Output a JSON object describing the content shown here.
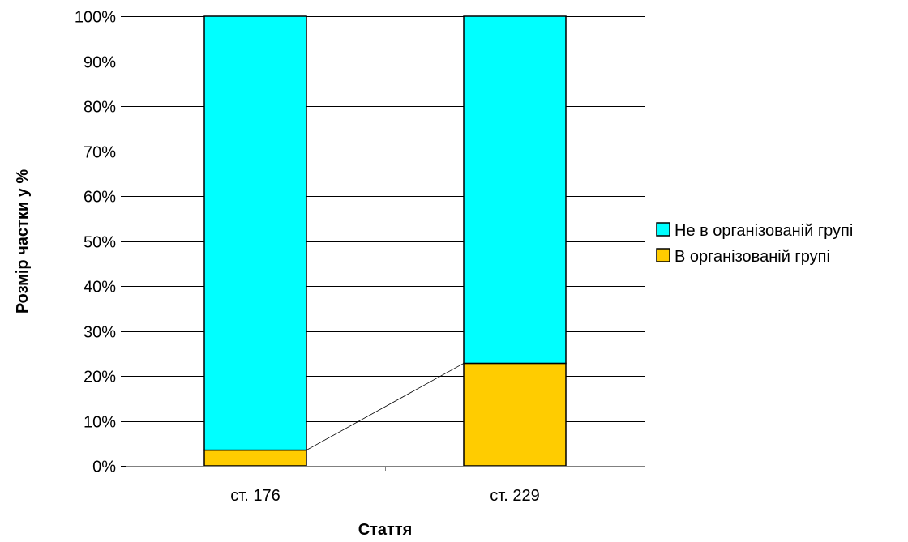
{
  "chart_data": {
    "type": "bar",
    "stacked": true,
    "percent_stacked": true,
    "categories": [
      "ст. 176",
      "ст. 229"
    ],
    "series": [
      {
        "name": "В організованій групі",
        "values": [
          3.5,
          22.8
        ],
        "color": "#FFCC00"
      },
      {
        "name": "Не в організованій групі",
        "values": [
          96.5,
          77.2
        ],
        "color": "#00FFFF"
      }
    ],
    "legend_order": [
      "Не в організованій групі",
      "В організованій групі"
    ],
    "title": "",
    "xlabel": "Стаття",
    "ylabel": "Розмір частки у %",
    "ylim": [
      0,
      100
    ],
    "yticks": [
      "0%",
      "10%",
      "20%",
      "30%",
      "40%",
      "50%",
      "60%",
      "70%",
      "80%",
      "90%",
      "100%"
    ],
    "grid": true,
    "series_lines": true,
    "legend_position": "right",
    "colors": {
      "gridline": "#000000",
      "bar_border": "#000000",
      "background": "#FFFFFF"
    }
  }
}
